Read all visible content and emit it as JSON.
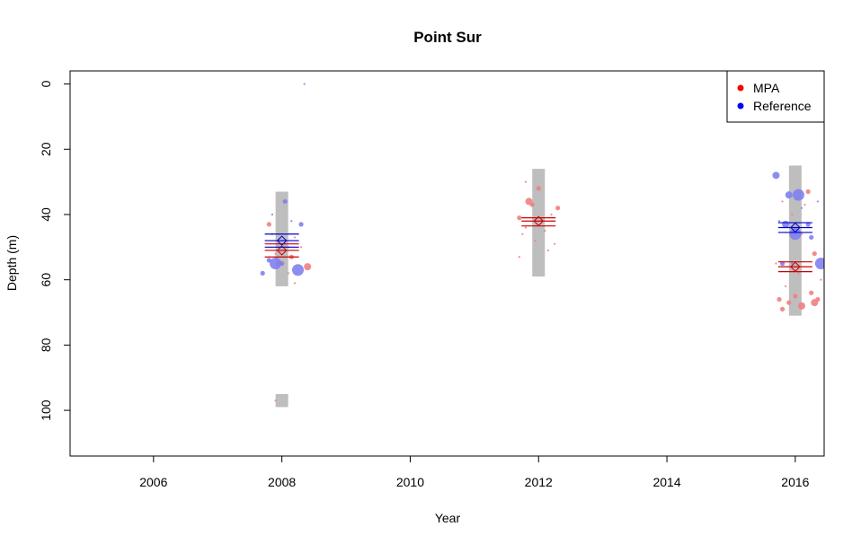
{
  "chart_data": {
    "type": "scatter",
    "title": "Point Sur",
    "xlabel": "Year",
    "ylabel": "Depth (m)",
    "xlim": [
      2004.7,
      2016.45
    ],
    "ylim": [
      114,
      -4
    ],
    "y_reversed": true,
    "x_ticks": [
      2006,
      2008,
      2010,
      2012,
      2014,
      2016
    ],
    "y_ticks": [
      0,
      20,
      40,
      60,
      80,
      100
    ],
    "grid": false,
    "legend": {
      "position": "top-right",
      "entries": [
        {
          "name": "MPA",
          "color": "#ff0000"
        },
        {
          "name": "Reference",
          "color": "#0000ff"
        }
      ]
    },
    "colors": {
      "mpa": "#f08080",
      "reference": "#8080f0",
      "mpa_line": "#cc0000",
      "reference_line": "#0000cc",
      "range_bar": "#bebebe"
    },
    "range_bars": [
      {
        "year": 2008,
        "from": 33,
        "to": 62
      },
      {
        "year": 2008,
        "from": 95,
        "to": 99
      },
      {
        "year": 2012,
        "from": 26,
        "to": 59
      },
      {
        "year": 2016,
        "from": 25,
        "to": 71
      }
    ],
    "summaries": [
      {
        "year": 2008,
        "series": "MPA",
        "mean": 51,
        "ci": [
          49,
          53
        ]
      },
      {
        "year": 2008,
        "series": "Reference",
        "mean": 48,
        "ci": [
          46,
          50
        ]
      },
      {
        "year": 2012,
        "series": "MPA",
        "mean": 42,
        "ci": [
          41,
          43.5
        ]
      },
      {
        "year": 2016,
        "series": "MPA",
        "mean": 56,
        "ci": [
          54.5,
          57.5
        ]
      },
      {
        "year": 2016,
        "series": "Reference",
        "mean": 44,
        "ci": [
          42.5,
          45.5
        ]
      }
    ],
    "series": [
      {
        "name": "MPA",
        "points": [
          {
            "x": 2007.8,
            "y": 43,
            "s": 2
          },
          {
            "x": 2007.85,
            "y": 46,
            "s": 1
          },
          {
            "x": 2007.9,
            "y": 52,
            "s": 1
          },
          {
            "x": 2007.95,
            "y": 55,
            "s": 2
          },
          {
            "x": 2008.05,
            "y": 49,
            "s": 1
          },
          {
            "x": 2008.1,
            "y": 58,
            "s": 1
          },
          {
            "x": 2008.15,
            "y": 53,
            "s": 2
          },
          {
            "x": 2008.2,
            "y": 47,
            "s": 1
          },
          {
            "x": 2008.3,
            "y": 50,
            "s": 1
          },
          {
            "x": 2008.4,
            "y": 56,
            "s": 3
          },
          {
            "x": 2007.9,
            "y": 97,
            "s": 1
          },
          {
            "x": 2008.2,
            "y": 61,
            "s": 1
          },
          {
            "x": 2011.7,
            "y": 41,
            "s": 2
          },
          {
            "x": 2011.75,
            "y": 46,
            "s": 1
          },
          {
            "x": 2011.7,
            "y": 53,
            "s": 1
          },
          {
            "x": 2011.8,
            "y": 30,
            "s": 1
          },
          {
            "x": 2011.85,
            "y": 36,
            "s": 3
          },
          {
            "x": 2011.9,
            "y": 37,
            "s": 2
          },
          {
            "x": 2011.95,
            "y": 48,
            "s": 1
          },
          {
            "x": 2012.0,
            "y": 32,
            "s": 2
          },
          {
            "x": 2012.05,
            "y": 42,
            "s": 1
          },
          {
            "x": 2012.1,
            "y": 45,
            "s": 1
          },
          {
            "x": 2012.15,
            "y": 51,
            "s": 1
          },
          {
            "x": 2012.2,
            "y": 40,
            "s": 1
          },
          {
            "x": 2012.3,
            "y": 38,
            "s": 2
          },
          {
            "x": 2012.25,
            "y": 49,
            "s": 1
          },
          {
            "x": 2011.8,
            "y": 44,
            "s": 1
          },
          {
            "x": 2015.7,
            "y": 55,
            "s": 1
          },
          {
            "x": 2015.75,
            "y": 66,
            "s": 2
          },
          {
            "x": 2015.8,
            "y": 69,
            "s": 2
          },
          {
            "x": 2015.85,
            "y": 62,
            "s": 1
          },
          {
            "x": 2015.9,
            "y": 67,
            "s": 2
          },
          {
            "x": 2015.95,
            "y": 40,
            "s": 1
          },
          {
            "x": 2016.0,
            "y": 65,
            "s": 2
          },
          {
            "x": 2016.05,
            "y": 58,
            "s": 1
          },
          {
            "x": 2016.1,
            "y": 68,
            "s": 3
          },
          {
            "x": 2016.15,
            "y": 37,
            "s": 1
          },
          {
            "x": 2016.2,
            "y": 33,
            "s": 2
          },
          {
            "x": 2016.25,
            "y": 64,
            "s": 2
          },
          {
            "x": 2016.3,
            "y": 67,
            "s": 3
          },
          {
            "x": 2016.35,
            "y": 66,
            "s": 2
          },
          {
            "x": 2016.4,
            "y": 60,
            "s": 1
          },
          {
            "x": 2015.8,
            "y": 36,
            "s": 1
          },
          {
            "x": 2016.1,
            "y": 46,
            "s": 1
          },
          {
            "x": 2016.3,
            "y": 52,
            "s": 2
          }
        ]
      },
      {
        "name": "Reference",
        "points": [
          {
            "x": 2007.7,
            "y": 58,
            "s": 2
          },
          {
            "x": 2007.8,
            "y": 54,
            "s": 2
          },
          {
            "x": 2007.85,
            "y": 40,
            "s": 1
          },
          {
            "x": 2007.9,
            "y": 55,
            "s": 4
          },
          {
            "x": 2008.0,
            "y": 55,
            "s": 2
          },
          {
            "x": 2008.05,
            "y": 36,
            "s": 2
          },
          {
            "x": 2008.1,
            "y": 50,
            "s": 1
          },
          {
            "x": 2008.15,
            "y": 42,
            "s": 1
          },
          {
            "x": 2008.25,
            "y": 57,
            "s": 4
          },
          {
            "x": 2008.3,
            "y": 43,
            "s": 2
          },
          {
            "x": 2008.35,
            "y": 0,
            "s": 1
          },
          {
            "x": 2015.7,
            "y": 28,
            "s": 3
          },
          {
            "x": 2015.75,
            "y": 42,
            "s": 1
          },
          {
            "x": 2015.8,
            "y": 55,
            "s": 2
          },
          {
            "x": 2015.85,
            "y": 43,
            "s": 3
          },
          {
            "x": 2015.9,
            "y": 34,
            "s": 3
          },
          {
            "x": 2015.95,
            "y": 55,
            "s": 1
          },
          {
            "x": 2016.0,
            "y": 46,
            "s": 4
          },
          {
            "x": 2016.05,
            "y": 34,
            "s": 4
          },
          {
            "x": 2016.1,
            "y": 38,
            "s": 1
          },
          {
            "x": 2016.2,
            "y": 43,
            "s": 2
          },
          {
            "x": 2016.25,
            "y": 47,
            "s": 2
          },
          {
            "x": 2016.35,
            "y": 36,
            "s": 1
          },
          {
            "x": 2016.4,
            "y": 55,
            "s": 4
          }
        ]
      }
    ]
  }
}
